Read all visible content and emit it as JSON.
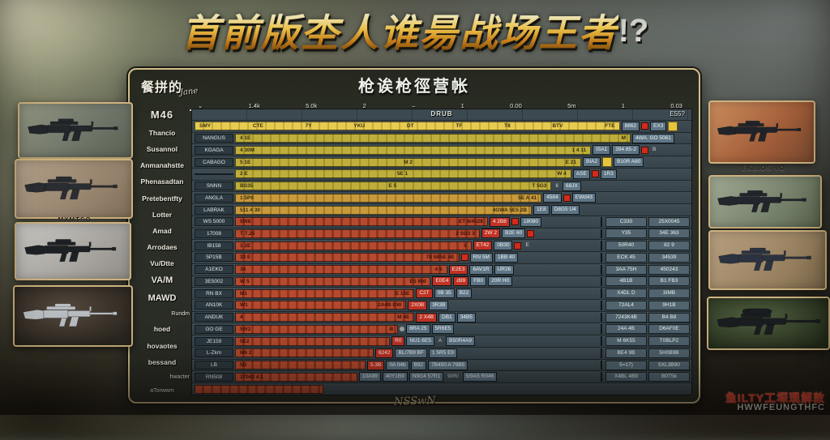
{
  "title": {
    "main": "首前版杢人谁昜战场王者",
    "suffix": "!?"
  },
  "panel": {
    "corner_label": "餐拼的",
    "corner_script": "Jane",
    "header_title": "枪诶枪徑营帐",
    "thead_center": "DRUB",
    "thead_right": "E55?",
    "footer_script": "NSSwN",
    "ruler_ticks": [
      "⌄",
      "1.4k",
      "5.0k",
      "2",
      "–",
      "1",
      "0.00",
      "5m",
      "1",
      "0.03"
    ]
  },
  "weapon_names": [
    {
      "label": "M46",
      "style": "bold-lg"
    },
    {
      "label": "Thancio",
      "style": ""
    },
    {
      "label": "Susannol",
      "style": ""
    },
    {
      "label": "Anmanahstte",
      "style": ""
    },
    {
      "label": "Phenasadtan",
      "style": ""
    },
    {
      "label": "Pretebentfty",
      "style": ""
    },
    {
      "label": "Lotter",
      "style": ""
    },
    {
      "label": "Amad",
      "style": ""
    },
    {
      "label": "Arrodaes",
      "style": ""
    },
    {
      "label": "Vu/Dtte",
      "style": ""
    },
    {
      "label": "VA/M",
      "style": "bold"
    },
    {
      "label": "MAWD",
      "style": "bold"
    },
    {
      "label": "Rundm",
      "style": "small indent"
    },
    {
      "label": "hoed",
      "style": ""
    },
    {
      "label": "hovaotes",
      "style": ""
    },
    {
      "label": "bessand",
      "style": ""
    },
    {
      "label": "hwacter",
      "style": "small indent"
    },
    {
      "label": "aTorwwm",
      "style": "small"
    }
  ],
  "rows": [
    {
      "chip": null,
      "color": "gold",
      "w": 86,
      "segs": [
        "SMY",
        "CTE",
        "7Y",
        "YKU",
        "DT",
        "TF",
        "T8",
        "BTV",
        "FTE"
      ],
      "badges": [
        {
          "t": "8862",
          "k": "b"
        },
        {
          "k": "rd"
        },
        {
          "t": "EX3",
          "k": "b"
        },
        {
          "k": "y"
        }
      ],
      "right": null
    },
    {
      "chip": "NANGUS",
      "color": "yellow",
      "w": 80,
      "segs": [
        "4 1E",
        "M"
      ],
      "badges": [
        {
          "t": "4WA. GO 5061",
          "k": "b"
        }
      ],
      "right": null
    },
    {
      "chip": "KGAGA",
      "color": "yellow",
      "w": 72,
      "segs": [
        "4 30M",
        "1 4 11"
      ],
      "badges": [
        {
          "t": "ISA1",
          "k": "b"
        },
        {
          "t": "394 85-2",
          "k": "b"
        },
        {
          "k": "rd"
        },
        {
          "t": "B",
          "k": "g"
        }
      ],
      "right": null
    },
    {
      "chip": "CABAGO",
      "color": "yellow",
      "w": 70,
      "segs": [
        "5 1E",
        "M 2",
        "E 21"
      ],
      "badges": [
        {
          "t": "BIA2",
          "k": "b"
        },
        {
          "k": "y"
        },
        {
          "t": "B10R A80",
          "k": "b"
        }
      ],
      "right": null
    },
    {
      "chip": "",
      "color": "yellow",
      "w": 68,
      "segs": [
        "2 E",
        "5E 1",
        "W 4"
      ],
      "badges": [
        {
          "t": "ASE",
          "k": "b"
        },
        {
          "k": "rd"
        },
        {
          "t": "1R3",
          "k": "b"
        }
      ],
      "right": null
    },
    {
      "chip": "SNNN",
      "color": "yellow",
      "w": 64,
      "segs": [
        "BS35",
        "E 5",
        "T 5G3"
      ],
      "badges": [
        {
          "t": "6",
          "k": "g"
        },
        {
          "t": "68JX",
          "k": "b"
        }
      ],
      "right": null
    },
    {
      "chip": "ANGLA",
      "color": "orange",
      "w": 62,
      "segs": [
        "1 5P0",
        "5E A 41"
      ],
      "badges": [
        {
          "t": "4584",
          "k": "b"
        },
        {
          "k": "rd"
        },
        {
          "t": "EWd43",
          "k": "b"
        }
      ],
      "right": null
    },
    {
      "chip": "LABRAK",
      "color": "orange",
      "w": 60,
      "segs": [
        "511 4 30",
        "4GWA 5E5 2B"
      ],
      "badges": [
        {
          "t": "1E8",
          "k": "b"
        },
        {
          "t": "D8G5 U4",
          "k": "b"
        }
      ],
      "right": null
    },
    {
      "chip": "WS 5000",
      "color": "red",
      "w": 62,
      "segs": [
        "5W8",
        "ET 8/4528"
      ],
      "badges": [
        {
          "t": "4 2B8",
          "k": "r"
        },
        {
          "k": "rd"
        },
        {
          "t": "18080",
          "k": "b"
        }
      ],
      "right": [
        "C330",
        "25X0045"
      ]
    },
    {
      "chip": "17008",
      "color": "red",
      "w": 60,
      "segs": [
        "T 7.25",
        "2 50/2 3"
      ],
      "badges": [
        {
          "t": "2W 2",
          "k": "r"
        },
        {
          "t": "B2E 60",
          "k": "b"
        },
        {
          "k": "rd"
        }
      ],
      "right": [
        "Y35",
        "34E 363"
      ]
    },
    {
      "chip": "IB158",
      "color": "red",
      "w": 58,
      "segs": [
        "1 2E",
        "5"
      ],
      "badges": [
        {
          "t": "ET42",
          "k": "r"
        },
        {
          "t": "0B30",
          "k": "b"
        },
        {
          "k": "rd"
        },
        {
          "t": "E",
          "k": "g"
        }
      ],
      "right": [
        "50R40",
        "82 9"
      ]
    },
    {
      "chip": "5P15B",
      "color": "red",
      "w": 55,
      "segs": [
        "33 E",
        "78 5B5E 4E"
      ],
      "badges": [
        {
          "k": "rd"
        },
        {
          "t": "RN 5M",
          "k": "b"
        },
        {
          "t": "1BB 40",
          "k": "b"
        }
      ],
      "right": [
        "ECK 45",
        "34539"
      ]
    },
    {
      "chip": "A1EKO",
      "color": "red",
      "w": 52,
      "segs": [
        "34",
        "4 5"
      ],
      "badges": [
        {
          "t": "E2E3",
          "k": "r"
        },
        {
          "t": "6AV1R",
          "k": "b"
        },
        {
          "t": "UR26",
          "k": "b"
        }
      ],
      "right": [
        "3AA 75H",
        "450243"
      ]
    },
    {
      "chip": "3E5002",
      "color": "red",
      "w": 48,
      "segs": [
        "W 5",
        "E5 Wd"
      ],
      "badges": [
        {
          "t": "E0E4",
          "k": "r"
        },
        {
          "t": "d99",
          "k": "r"
        },
        {
          "t": "FB0",
          "k": "b"
        },
        {
          "t": "20R H0",
          "k": "b"
        }
      ],
      "right": [
        "4B1B",
        "B1 FB3"
      ]
    },
    {
      "chip": "RN BX",
      "color": "red",
      "w": 44,
      "segs": [
        "M1",
        "E 15E"
      ],
      "badges": [
        {
          "t": "C2T",
          "k": "r"
        },
        {
          "t": "0B 35",
          "k": "b"
        },
        {
          "t": "B22",
          "k": "b"
        }
      ],
      "right": [
        "X4DL D",
        "3IMB"
      ]
    },
    {
      "chip": "AN10K",
      "color": "red",
      "w": 42,
      "segs": [
        "W1",
        "2A4B DW"
      ],
      "badges": [
        {
          "t": "2X0B",
          "k": "r"
        },
        {
          "t": "3R3B",
          "k": "b"
        }
      ],
      "right": [
        "72AL4",
        "9H1B"
      ]
    },
    {
      "chip": "ANDUK",
      "color": "red",
      "w": 44,
      "segs": [
        "4",
        "M 4E"
      ],
      "badges": [
        {
          "t": "2 X4B",
          "k": "r"
        },
        {
          "t": "DB1",
          "k": "b"
        },
        {
          "t": "34B5",
          "k": "b"
        }
      ],
      "right": [
        "7243K4B",
        "B4 B8"
      ]
    },
    {
      "chip": "GO GE",
      "color": "red",
      "w": 40,
      "segs": [
        "5W2",
        "B"
      ],
      "badges": [
        {
          "k": "gd"
        },
        {
          "t": "6RA 25",
          "k": "b"
        },
        {
          "t": "5R6E5",
          "k": "b"
        }
      ],
      "right": [
        "24A 4B",
        "D6AF0E"
      ]
    },
    {
      "chip": "JE159",
      "color": "red",
      "w": 38,
      "segs": [
        "5E2"
      ],
      "badges": [
        {
          "t": "R0",
          "k": "r"
        },
        {
          "t": "NU1 6E5",
          "k": "b"
        },
        {
          "t": "A",
          "k": "g"
        },
        {
          "t": "B50R4A9",
          "k": "b"
        }
      ],
      "right": [
        "M 6K55",
        "T0BLP2"
      ]
    },
    {
      "chip": "L-Zkm",
      "color": "red",
      "w": 34,
      "segs": [
        "M6 2"
      ],
      "badges": [
        {
          "t": "6242",
          "k": "r"
        },
        {
          "t": "BL/7B9 BF",
          "k": "b"
        },
        {
          "t": "1 5R5 E9",
          "k": "b"
        }
      ],
      "right": [
        "BE4 9B",
        "5H0B9B"
      ]
    },
    {
      "chip": "LB",
      "color": "red",
      "w": 32,
      "segs": [
        "5D"
      ],
      "badges": [
        {
          "t": "5.3B",
          "k": "r"
        },
        {
          "t": "0A 04b",
          "k": "b"
        },
        {
          "t": "B92",
          "k": "b"
        },
        {
          "t": "7B450 A 79B5",
          "k": "b"
        }
      ],
      "right": [
        "5=17)",
        "5XL3B90"
      ]
    },
    {
      "chip": "RN508",
      "color": "red",
      "w": 30,
      "segs": [
        "17042 4 1"
      ],
      "badges": [
        {
          "t": "10A99",
          "k": "b"
        },
        {
          "t": "40Y1B9",
          "k": "b"
        },
        {
          "t": "N9G4 57R1",
          "k": "b"
        },
        {
          "t": "90R/",
          "k": "g"
        },
        {
          "t": "5/9A5 R046",
          "k": "b"
        }
      ],
      "right": [
        "X4BL 4B9",
        "B0T5k"
      ]
    },
    {
      "chip": null,
      "color": "red",
      "w": 26,
      "segs": [],
      "badges": [],
      "right": null
    }
  ],
  "side_labels": {
    "left_caption": "MXMTSO",
    "right_caption": "EKBIOS VO"
  },
  "guns": {
    "left": [
      {
        "bg": "graygreen",
        "color": "#23262a",
        "type": "rifle"
      },
      {
        "bg": "tan",
        "color": "#2a2d31",
        "type": "rifle"
      },
      {
        "bg": "lightgray",
        "color": "#1e2124",
        "type": "rifle"
      },
      {
        "bg": "darkbrown",
        "color": "#b9bec2",
        "type": "rifle"
      }
    ],
    "right": [
      {
        "bg": "orange",
        "color": "#20242a",
        "type": "rifle"
      },
      {
        "bg": "greenblur",
        "color": "#23262c",
        "type": "rifle"
      },
      {
        "bg": "tan2",
        "color": "#2c3340",
        "type": "rifle"
      },
      {
        "bg": "darkgreen",
        "color": "#1b1e21",
        "type": "sniper"
      }
    ]
  },
  "watermark": {
    "line1": "鱼ILTY工堔现解敦",
    "line2": "HWWFEUNGTHFC"
  },
  "colors": {
    "accent_gold": "#e7cb50",
    "bar_yellow": "#bfae3a",
    "bar_red": "#b54a2e",
    "panel_border": "#d2bf8c",
    "badge_blue": "#5e7586",
    "badge_red": "#c03325",
    "watermark_red": "#e23a28"
  }
}
